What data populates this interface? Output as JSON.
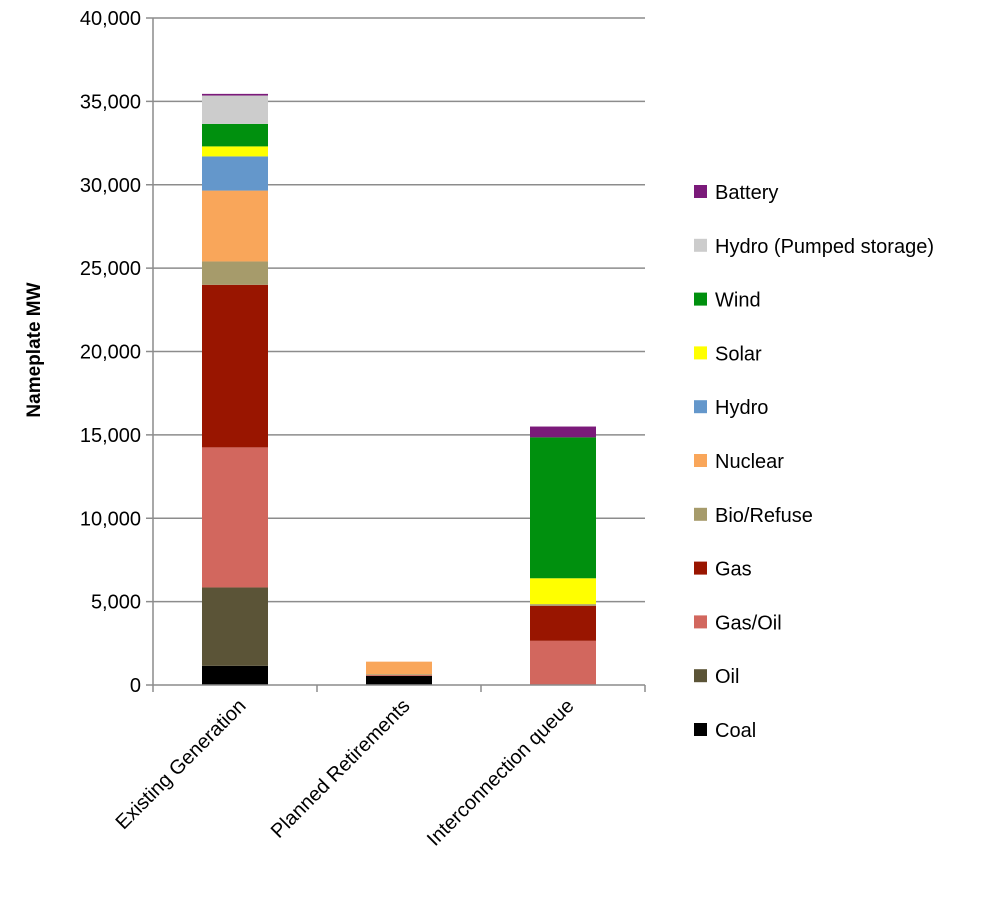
{
  "chart_data": {
    "type": "bar",
    "stacked": true,
    "title": "",
    "xlabel": "",
    "ylabel": "Nameplate MW",
    "ylim": [
      0,
      40000
    ],
    "yticks": [
      0,
      5000,
      10000,
      15000,
      20000,
      25000,
      30000,
      35000,
      40000
    ],
    "ytick_labels": [
      "0",
      "5,000",
      "10,000",
      "15,000",
      "20,000",
      "25,000",
      "30,000",
      "35,000",
      "40,000"
    ],
    "grid": true,
    "legend_position": "right",
    "categories": [
      "Existing Generation",
      "Planned Retirements",
      "Interconnection queue"
    ],
    "series": [
      {
        "name": "Coal",
        "color": "#000000",
        "values": [
          1150,
          550,
          0
        ]
      },
      {
        "name": "Oil",
        "color": "#5b5437",
        "values": [
          4700,
          0,
          0
        ]
      },
      {
        "name": "Gas/Oil",
        "color": "#d2675e",
        "values": [
          8400,
          50,
          2650
        ]
      },
      {
        "name": "Gas",
        "color": "#991500",
        "values": [
          9750,
          0,
          2100
        ]
      },
      {
        "name": "Bio/Refuse",
        "color": "#a69b6b",
        "values": [
          1400,
          50,
          100
        ]
      },
      {
        "name": "Nuclear",
        "color": "#f9a65a",
        "values": [
          4250,
          750,
          0
        ]
      },
      {
        "name": "Hydro",
        "color": "#6497cb",
        "values": [
          2050,
          0,
          0
        ]
      },
      {
        "name": "Solar",
        "color": "#ffff00",
        "values": [
          600,
          0,
          1550
        ]
      },
      {
        "name": "Wind",
        "color": "#00900e",
        "values": [
          1350,
          0,
          8450
        ]
      },
      {
        "name": "Hydro (Pumped storage)",
        "color": "#cccccc",
        "values": [
          1700,
          0,
          0
        ]
      },
      {
        "name": "Battery",
        "color": "#7b1a7a",
        "values": [
          100,
          0,
          650
        ]
      }
    ]
  }
}
